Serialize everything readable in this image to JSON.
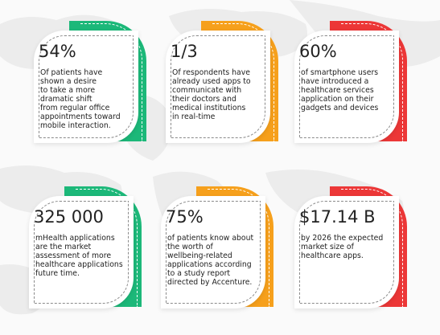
{
  "colors": {
    "green": "#1cb879",
    "orange": "#f6a01c",
    "red": "#ec3737",
    "map": "#e9e9e9"
  },
  "cards": [
    {
      "stat": "54%",
      "color": "green",
      "text": "Of patients have\nshown a desire\n to take a more\n dramatic shift\nfrom regular office\nappointments toward\nmobile interaction."
    },
    {
      "stat": "1/3",
      "color": "orange",
      "text": "Of respondents have\nalready used apps to\ncommunicate with\ntheir doctors and\nmedical institutions\n in real-time"
    },
    {
      "stat": "60%",
      "color": "red",
      "text": "of smartphone users\nhave introduced a\nhealthcare services\napplication on their\ngadgets and devices"
    },
    {
      "stat": "325 000",
      "color": "green",
      "text": "mHealth applications\nare the market\nassessment of more\nhealthcare applications\nfuture time."
    },
    {
      "stat": "75%",
      "color": "orange",
      "text": "of patients know about\nthe worth of\nwellbeing-related\napplications according\n to a study report\ndirected by Accenture."
    },
    {
      "stat": "$17.14 B",
      "color": "red",
      "text": "by 2026 the expected\nmarket size of\nhealthcare apps."
    }
  ]
}
